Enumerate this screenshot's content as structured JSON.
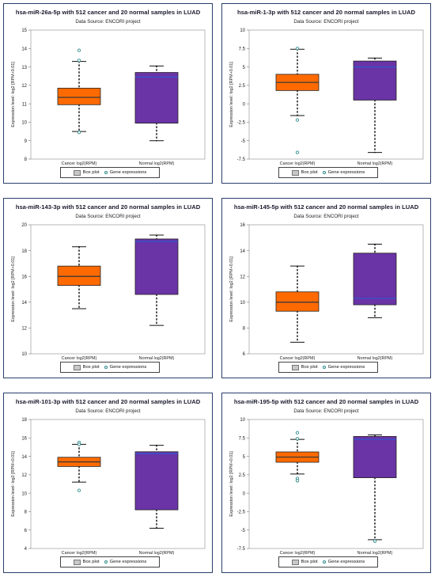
{
  "panels": [
    {
      "title": "hsa-miR-26a-5p with 512 cancer and 20 normal samples in LUAD"
    },
    {
      "title": "hsa-miR-1-3p with 512 cancer and 20 normal samples in LUAD"
    },
    {
      "title": "hsa-miR-143-3p with 512 cancer and 20 normal samples in LUAD"
    },
    {
      "title": "hsa-miR-145-5p with 512 cancer and 20 normal samples in LUAD"
    },
    {
      "title": "hsa-miR-101-3p with 512 cancer and 20 normal samples in LUAD"
    },
    {
      "title": "hsa-miR-195-5p with 512 cancer and 20 normal samples in LUAD"
    }
  ],
  "common": {
    "subtitle": "Data Source: ENCORI project",
    "legend_box": "Box plot",
    "legend_dots": "Gene expressions"
  },
  "colors": {
    "cancer_box": "#ff6a00",
    "normal_box": "#6a33a6",
    "median_cancer": "#3a3a3a",
    "median_normal": "#3355cc",
    "outlier": "#2e8b8b",
    "panel_border": "#2b3f6c"
  },
  "chart_data": [
    {
      "type": "box",
      "title": "hsa-miR-26a-5p with 512 cancer and 20 normal samples in LUAD",
      "ylabel": "Expression level: log2 [RPM+0.01]",
      "categories": [
        "Cancer log2(RPM)",
        "Normal log2(RPM)"
      ],
      "ylim": [
        8,
        15
      ],
      "yticks": [
        8,
        9,
        10,
        11,
        12,
        13,
        14,
        15
      ],
      "boxes": [
        {
          "name": "Cancer log2(RPM)",
          "min": 9.5,
          "q1": 10.95,
          "median": 11.35,
          "q3": 11.85,
          "max": 13.3
        },
        {
          "name": "Normal log2(RPM)",
          "min": 9.0,
          "q1": 9.95,
          "median": 12.45,
          "q3": 12.7,
          "max": 13.05
        }
      ],
      "outliers": [
        {
          "group": 0,
          "values": [
            13.9,
            13.35,
            9.45
          ]
        },
        {
          "group": 1,
          "values": []
        }
      ]
    },
    {
      "type": "box",
      "title": "hsa-miR-1-3p with 512 cancer and 20 normal samples in LUAD",
      "ylabel": "Expression level: log2 [RPM+0.01]",
      "categories": [
        "Cancer log2(RPM)",
        "Normal log2(RPM)"
      ],
      "ylim": [
        -7.5,
        10
      ],
      "yticks": [
        -7.5,
        -5,
        -2.5,
        0,
        2.5,
        5,
        7.5,
        10
      ],
      "boxes": [
        {
          "name": "Cancer log2(RPM)",
          "min": -1.6,
          "q1": 1.8,
          "median": 2.9,
          "q3": 4.0,
          "max": 7.4
        },
        {
          "name": "Normal log2(RPM)",
          "min": -6.6,
          "q1": 0.5,
          "median": 5.0,
          "q3": 5.8,
          "max": 6.2
        }
      ],
      "outliers": [
        {
          "group": 0,
          "values": [
            7.5,
            -2.2,
            -6.6
          ]
        },
        {
          "group": 1,
          "values": []
        }
      ]
    },
    {
      "type": "box",
      "title": "hsa-miR-143-3p with 512 cancer and 20 normal samples in LUAD",
      "ylabel": "Expression level: log2 [RPM+0.01]",
      "categories": [
        "Cancer log2(RPM)",
        "Normal log2(RPM)"
      ],
      "ylim": [
        10,
        20
      ],
      "yticks": [
        10,
        12,
        14,
        16,
        18,
        20
      ],
      "boxes": [
        {
          "name": "Cancer log2(RPM)",
          "min": 13.5,
          "q1": 15.3,
          "median": 16.0,
          "q3": 16.8,
          "max": 18.3
        },
        {
          "name": "Normal log2(RPM)",
          "min": 12.2,
          "q1": 14.6,
          "median": 18.7,
          "q3": 18.9,
          "max": 19.2
        }
      ],
      "outliers": [
        {
          "group": 0,
          "values": []
        },
        {
          "group": 1,
          "values": []
        }
      ]
    },
    {
      "type": "box",
      "title": "hsa-miR-145-5p with 512 cancer and 20 normal samples in LUAD",
      "ylabel": "Expression level: log2 [RPM+0.01]",
      "categories": [
        "Cancer log2(RPM)",
        "Normal log2(RPM)"
      ],
      "ylim": [
        6,
        16
      ],
      "yticks": [
        6,
        8,
        10,
        12,
        14,
        16
      ],
      "boxes": [
        {
          "name": "Cancer log2(RPM)",
          "min": 6.9,
          "q1": 9.3,
          "median": 10.0,
          "q3": 10.8,
          "max": 12.8
        },
        {
          "name": "Normal log2(RPM)",
          "min": 8.8,
          "q1": 9.8,
          "median": 10.3,
          "q3": 13.8,
          "max": 14.5
        }
      ],
      "outliers": [
        {
          "group": 0,
          "values": []
        },
        {
          "group": 1,
          "values": []
        }
      ]
    },
    {
      "type": "box",
      "title": "hsa-miR-101-3p with 512 cancer and 20 normal samples in LUAD",
      "ylabel": "Expression level: log2 [RPM+0.01]",
      "categories": [
        "Cancer log2(RPM)",
        "Normal log2(RPM)"
      ],
      "ylim": [
        4,
        18
      ],
      "yticks": [
        4,
        6,
        8,
        10,
        12,
        14,
        16,
        18
      ],
      "boxes": [
        {
          "name": "Cancer log2(RPM)",
          "min": 11.2,
          "q1": 12.9,
          "median": 13.4,
          "q3": 13.9,
          "max": 15.3
        },
        {
          "name": "Normal log2(RPM)",
          "min": 6.2,
          "q1": 8.2,
          "median": 14.3,
          "q3": 14.5,
          "max": 15.2
        }
      ],
      "outliers": [
        {
          "group": 0,
          "values": [
            15.5,
            15.3,
            10.3
          ]
        },
        {
          "group": 1,
          "values": []
        }
      ]
    },
    {
      "type": "box",
      "title": "hsa-miR-195-5p with 512 cancer and 20 normal samples in LUAD",
      "ylabel": "Expression level: log2 [RPM+0.01]",
      "categories": [
        "Cancer log2(RPM)",
        "Normal log2(RPM)"
      ],
      "ylim": [
        -7.5,
        10
      ],
      "yticks": [
        -7.5,
        -5,
        -2.5,
        0,
        2.5,
        5,
        7.5,
        10
      ],
      "boxes": [
        {
          "name": "Cancer log2(RPM)",
          "min": 2.6,
          "q1": 4.2,
          "median": 4.9,
          "q3": 5.6,
          "max": 7.3
        },
        {
          "name": "Normal log2(RPM)",
          "min": -6.3,
          "q1": 2.1,
          "median": 7.3,
          "q3": 7.7,
          "max": 7.9
        }
      ],
      "outliers": [
        {
          "group": 0,
          "values": [
            8.2,
            7.4,
            2.0,
            1.7
          ]
        },
        {
          "group": 1,
          "values": [
            -6.5
          ]
        }
      ]
    }
  ]
}
